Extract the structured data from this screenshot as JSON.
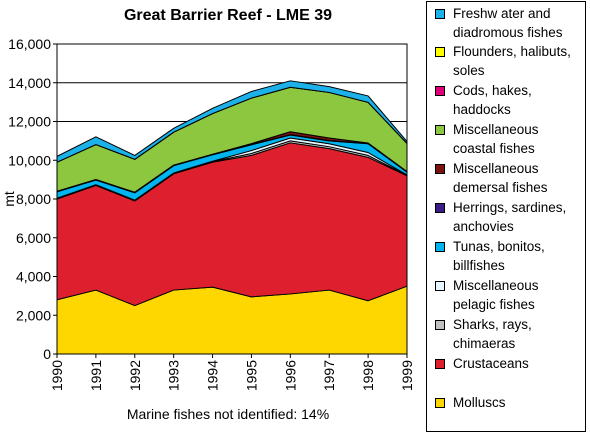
{
  "chart_data": {
    "type": "area",
    "stacked": true,
    "title": "Great Barrier Reef - LME 39",
    "ylabel": "mt",
    "xlabel": "",
    "note": "Marine fishes not identified: 14%",
    "x": [
      "1990",
      "1991",
      "1992",
      "1993",
      "1994",
      "1995",
      "1996",
      "1997",
      "1998",
      "1999"
    ],
    "ylim": [
      0,
      16000
    ],
    "yticks": [
      0,
      2000,
      4000,
      6000,
      8000,
      10000,
      12000,
      14000,
      16000
    ],
    "ytick_labels": [
      "0",
      "2,000",
      "4,000",
      "6,000",
      "8,000",
      "10,000",
      "12,000",
      "14,000",
      "16,000"
    ],
    "grid": true,
    "legend_position": "right",
    "series": [
      {
        "name": "Molluscs",
        "color": "#ffd700",
        "values": [
          2800,
          3300,
          2500,
          3300,
          3450,
          2950,
          3100,
          3300,
          2750,
          3500
        ]
      },
      {
        "name": "Crustaceans",
        "color": "#dd1f2e",
        "values": [
          5200,
          5400,
          5400,
          6000,
          6450,
          7300,
          7800,
          7300,
          7400,
          5700
        ]
      },
      {
        "name": "Sharks, rays, chimaeras",
        "color": "#c0c0c0",
        "values": [
          20,
          20,
          20,
          20,
          30,
          100,
          100,
          100,
          100,
          20
        ]
      },
      {
        "name": "Miscellaneous pelagic fishes",
        "color": "#e6f7ff",
        "values": [
          20,
          20,
          20,
          20,
          20,
          150,
          150,
          150,
          150,
          20
        ]
      },
      {
        "name": "Tunas, bonitos, billfishes",
        "color": "#00b4f0",
        "values": [
          330,
          240,
          380,
          380,
          330,
          300,
          150,
          150,
          450,
          150
        ]
      },
      {
        "name": "Herrings, sardines, anchovies",
        "color": "#3a1c86",
        "values": [
          10,
          10,
          10,
          10,
          10,
          20,
          20,
          20,
          20,
          10
        ]
      },
      {
        "name": "Miscellaneous demersal fishes",
        "color": "#7a1210",
        "values": [
          20,
          20,
          20,
          20,
          20,
          40,
          150,
          130,
          20,
          20
        ]
      },
      {
        "name": "Miscellaneous coastal fishes",
        "color": "#8dc63f",
        "values": [
          1500,
          1800,
          1700,
          1700,
          2100,
          2350,
          2300,
          2350,
          2100,
          1450
        ]
      },
      {
        "name": "Cods, hakes, haddocks",
        "color": "#e0007a",
        "values": [
          0,
          0,
          0,
          0,
          0,
          0,
          0,
          0,
          0,
          0
        ]
      },
      {
        "name": "Flounders, halibuts, soles",
        "color": "#ffff00",
        "values": [
          0,
          0,
          0,
          0,
          0,
          0,
          0,
          0,
          0,
          0
        ]
      },
      {
        "name": "Freshwater and diadromous fishes",
        "color": "#1cb1e8",
        "values": [
          300,
          400,
          200,
          200,
          270,
          340,
          330,
          300,
          330,
          100
        ]
      }
    ]
  },
  "legend": [
    {
      "label": "Freshw ater and\ndiadromous fishes",
      "color": "#1cb1e8"
    },
    {
      "label": "Flounders, halibuts,\nsoles",
      "color": "#ffff00"
    },
    {
      "label": "Cods, hakes,\nhaddocks",
      "color": "#e0007a"
    },
    {
      "label": "Miscellaneous\ncoastal fishes",
      "color": "#8dc63f"
    },
    {
      "label": "Miscellaneous\ndemersal fishes",
      "color": "#7a1210"
    },
    {
      "label": "Herrings, sardines,\nanchovies",
      "color": "#3a1c86"
    },
    {
      "label": "Tunas, bonitos,\nbillfishes",
      "color": "#00b4f0"
    },
    {
      "label": "Miscellaneous\npelagic fishes",
      "color": "#e6f7ff"
    },
    {
      "label": "Sharks, rays,\nchimaeras",
      "color": "#c0c0c0"
    },
    {
      "label": "Crustaceans",
      "color": "#dd1f2e"
    },
    {
      "label": "Molluscs",
      "color": "#ffd700"
    }
  ]
}
